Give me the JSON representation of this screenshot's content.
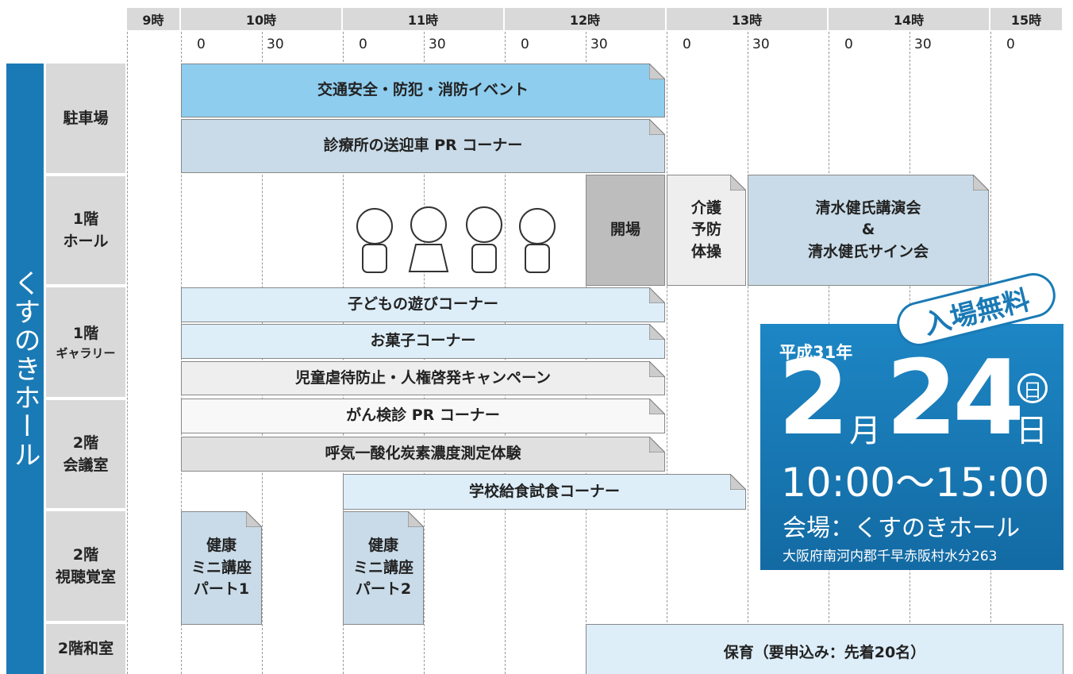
{
  "timeline": {
    "hours": [
      "9時",
      "10時",
      "11時",
      "12時",
      "13時",
      "14時",
      "15時"
    ],
    "minutes": [
      "0",
      "30",
      "0",
      "30",
      "0",
      "30",
      "0",
      "30",
      "0",
      "30",
      "0"
    ]
  },
  "venue": "くすのきホール",
  "rooms": [
    [
      "駐車場"
    ],
    [
      "1階",
      "ホール"
    ],
    [
      "1階",
      "ギャラリー"
    ],
    [
      "2階",
      "会議室"
    ],
    [
      "2階",
      "視聴覚室"
    ],
    [
      "2階和室"
    ]
  ],
  "events": [
    {
      "lines": [
        "交通安全・防犯・消防イベント"
      ]
    },
    {
      "lines": [
        "診療所の送迎車 PR コーナー"
      ]
    },
    {
      "lines": [
        "開場"
      ]
    },
    {
      "lines": [
        "介護",
        "予防",
        "体操"
      ]
    },
    {
      "lines": [
        "清水健氏講演会",
        "&",
        "清水健氏サイン会"
      ]
    },
    {
      "lines": [
        "子どもの遊びコーナー"
      ]
    },
    {
      "lines": [
        "お菓子コーナー"
      ]
    },
    {
      "lines": [
        "児童虐待防止・人権啓発キャンペーン"
      ]
    },
    {
      "lines": [
        "がん検診 PR コーナー"
      ]
    },
    {
      "lines": [
        "呼気一酸化炭素濃度測定体験"
      ]
    },
    {
      "lines": [
        "学校給食試食コーナー"
      ]
    },
    {
      "lines": [
        "健康",
        "ミニ講座",
        "パート1"
      ]
    },
    {
      "lines": [
        "健康",
        "ミニ講座",
        "パート2"
      ]
    },
    {
      "lines": [
        "保育（要申込み：先着20名）"
      ]
    }
  ],
  "info": {
    "badge": "入場無料",
    "era": "平成31年",
    "month": "2",
    "month_unit": "月",
    "day": "24",
    "day_unit": "日",
    "weekday": "日",
    "hours": "10:00〜15:00",
    "venue": "会場：くすのきホール",
    "address": "大阪府南河内郡千早赤阪村水分263"
  }
}
